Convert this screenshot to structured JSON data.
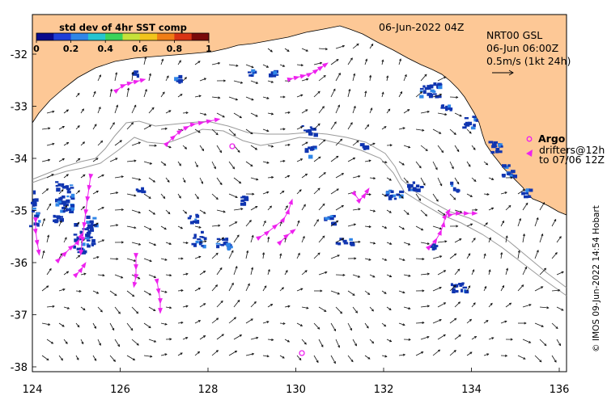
{
  "colorbar": {
    "title": "std dev of 4hr SST comp",
    "ticks": [
      "0",
      "0.2",
      "0.4",
      "0.6",
      "0.8",
      "1"
    ],
    "colors": [
      "#0a0a8c",
      "#1f3fd8",
      "#2f86e8",
      "#25c5d0",
      "#3bd35a",
      "#c6e23a",
      "#f2c41b",
      "#f07d16",
      "#d93314",
      "#7a0a0a"
    ]
  },
  "timestamp": "06-Jun-2022 04Z",
  "current_source": {
    "line1": "NRT00 GSL",
    "line2": "06-Jun 06:00Z",
    "scale": "0.5m/s (1kt 24h)"
  },
  "legend": {
    "argo_label": "Argo",
    "drifters_line1": "drifters@12h",
    "drifters_line2": "to 07/06 12Z"
  },
  "credit": "© IMOS 09-Jun-2022 14:54 Hobart",
  "axes": {
    "x_ticks": [
      "124",
      "126",
      "128",
      "130",
      "132",
      "134",
      "136"
    ],
    "y_ticks": [
      "-32",
      "-33",
      "-34",
      "-35",
      "-36",
      "-37",
      "-38"
    ]
  },
  "colors": {
    "land": "#fdc896",
    "drifter": "#ee22ee",
    "sst_patch": "#1035b0",
    "contour": "#9a9a9a"
  }
}
